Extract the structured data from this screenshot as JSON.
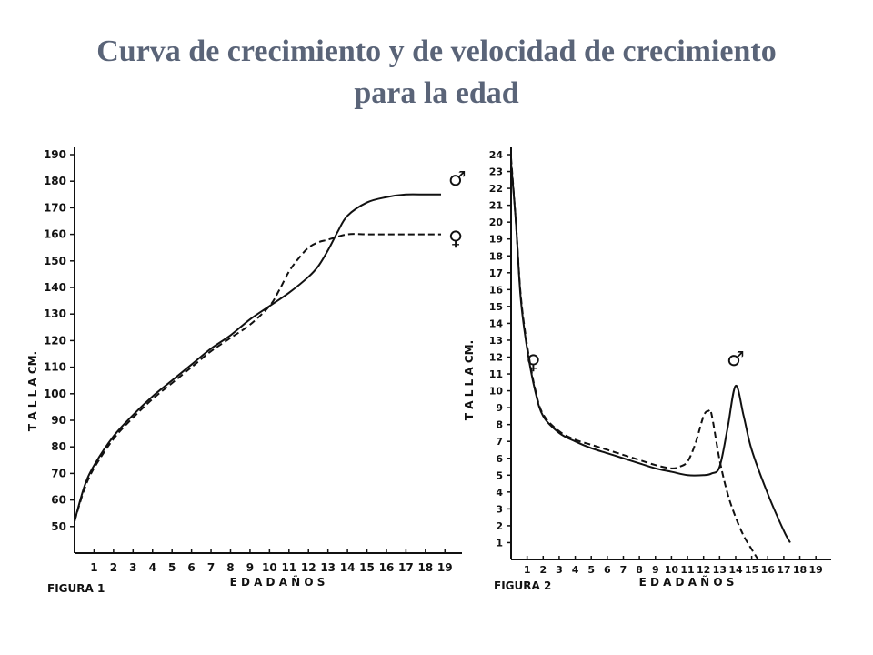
{
  "slide": {
    "title_line1": "Curva de crecimiento y de velocidad de crecimiento",
    "title_line2": "para la edad"
  },
  "chart_data": [
    {
      "type": "line",
      "figure_label": "FIGURA 1",
      "xlabel": "E D A D     A Ñ O S",
      "ylabel": "T A L L A     CM.",
      "x_ticks": [
        1,
        2,
        3,
        4,
        5,
        6,
        7,
        8,
        9,
        10,
        11,
        12,
        13,
        14,
        15,
        16,
        17,
        18,
        19
      ],
      "y_ticks": [
        50,
        60,
        70,
        80,
        90,
        100,
        110,
        120,
        130,
        140,
        150,
        160,
        170,
        180,
        190
      ],
      "xlim": [
        0,
        19.5
      ],
      "ylim": [
        40,
        190
      ],
      "series": [
        {
          "name": "♂",
          "style": "solid",
          "x": [
            0,
            0.5,
            1,
            2,
            3,
            4,
            5,
            6,
            7,
            8,
            9,
            10,
            11,
            12,
            12.5,
            13,
            13.5,
            14,
            15,
            16,
            17,
            18,
            18.8
          ],
          "y": [
            52,
            65,
            73,
            84,
            92,
            99,
            105,
            111,
            117,
            122,
            128,
            133,
            138,
            144,
            148,
            154,
            161,
            167,
            172,
            174,
            175,
            175,
            175
          ]
        },
        {
          "name": "♀",
          "style": "dashed",
          "x": [
            0,
            0.5,
            1,
            2,
            3,
            4,
            5,
            6,
            7,
            8,
            9,
            10,
            10.5,
            11,
            11.5,
            12,
            12.5,
            13,
            14,
            15,
            16,
            17,
            18,
            18.8
          ],
          "y": [
            52,
            64,
            72,
            83,
            91,
            98,
            104,
            110,
            116,
            121,
            126,
            133,
            139,
            146,
            151,
            155,
            157,
            158,
            160,
            160,
            160,
            160,
            160,
            160
          ]
        }
      ]
    },
    {
      "type": "line",
      "figure_label": "FIGURA 2",
      "xlabel": "E D A D     A Ñ O S",
      "ylabel": "T A L L A     CM.",
      "x_ticks": [
        1,
        2,
        3,
        4,
        5,
        6,
        7,
        8,
        9,
        10,
        11,
        12,
        13,
        14,
        15,
        16,
        17,
        18,
        19
      ],
      "y_ticks": [
        1,
        2,
        3,
        4,
        5,
        6,
        7,
        8,
        9,
        10,
        11,
        12,
        13,
        14,
        15,
        16,
        17,
        18,
        19,
        20,
        21,
        22,
        23,
        24
      ],
      "xlim": [
        0,
        19.5
      ],
      "ylim": [
        0,
        24
      ],
      "series": [
        {
          "name": "♂",
          "style": "solid",
          "x": [
            0,
            0.3,
            0.6,
            1,
            1.5,
            2,
            3,
            4,
            5,
            6,
            7,
            8,
            9,
            10,
            11,
            12,
            12.5,
            13,
            13.5,
            14,
            14.5,
            15,
            16,
            17,
            17.4
          ],
          "y": [
            23.5,
            20,
            15.5,
            12.5,
            10,
            8.5,
            7.5,
            7,
            6.6,
            6.3,
            6,
            5.7,
            5.4,
            5.2,
            5,
            5,
            5.1,
            5.5,
            7.8,
            10.3,
            8.5,
            6.5,
            3.9,
            1.7,
            1
          ]
        },
        {
          "name": "♀",
          "style": "dashed",
          "x": [
            0,
            0.3,
            0.6,
            1,
            1.5,
            2,
            3,
            4,
            5,
            6,
            7,
            8,
            9,
            10,
            10.5,
            11,
            11.5,
            12,
            12.3,
            12.5,
            13,
            13.5,
            14,
            14.5,
            15,
            15.4
          ],
          "y": [
            23.8,
            20,
            15.7,
            12.7,
            10.1,
            8.6,
            7.6,
            7.1,
            6.8,
            6.5,
            6.2,
            5.9,
            5.6,
            5.4,
            5.5,
            5.8,
            6.9,
            8.5,
            8.8,
            8.6,
            5.9,
            3.9,
            2.5,
            1.4,
            0.6,
            0
          ]
        }
      ]
    }
  ]
}
